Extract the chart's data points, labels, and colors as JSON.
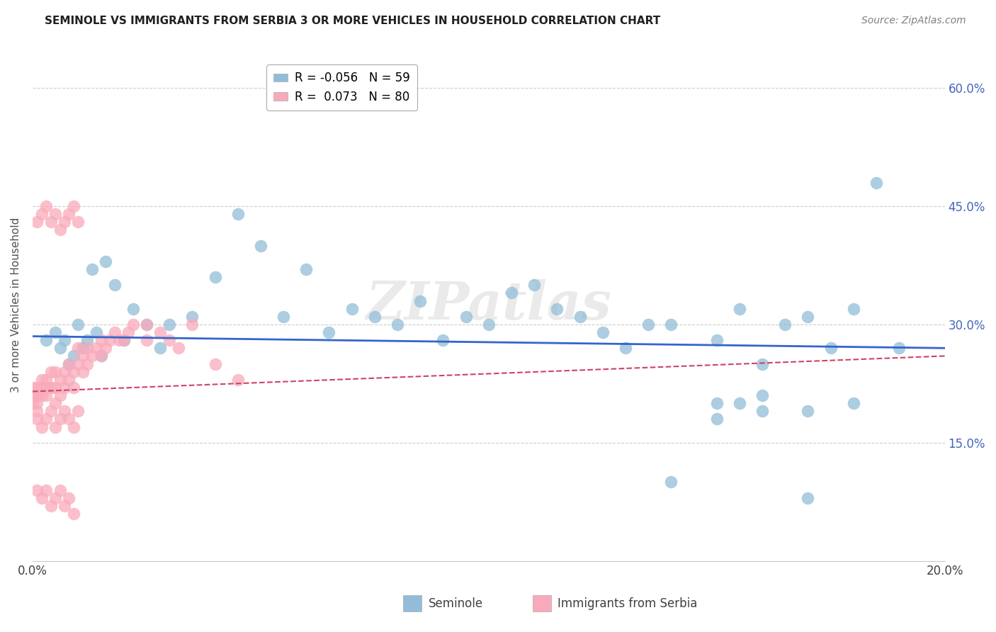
{
  "title": "SEMINOLE VS IMMIGRANTS FROM SERBIA 3 OR MORE VEHICLES IN HOUSEHOLD CORRELATION CHART",
  "source": "Source: ZipAtlas.com",
  "ylabel": "3 or more Vehicles in Household",
  "xlim": [
    0.0,
    0.2
  ],
  "ylim": [
    0.0,
    0.65
  ],
  "xticks": [
    0.0,
    0.05,
    0.1,
    0.15,
    0.2
  ],
  "yticks": [
    0.0,
    0.15,
    0.3,
    0.45,
    0.6
  ],
  "xticklabels": [
    "0.0%",
    "",
    "",
    "",
    "20.0%"
  ],
  "yticklabels_right": [
    "",
    "15.0%",
    "30.0%",
    "45.0%",
    "60.0%"
  ],
  "legend_blue_r": "-0.056",
  "legend_blue_n": "59",
  "legend_pink_r": "0.073",
  "legend_pink_n": "80",
  "seminole_color": "#92BDD8",
  "serbia_color": "#F9AABA",
  "line_blue": "#3366CC",
  "line_pink": "#CC4466",
  "grid_color": "#CCCCCC",
  "title_color": "#202020",
  "right_tick_color": "#4466BB",
  "watermark": "ZIPatlas",
  "seminole_x": [
    0.003,
    0.005,
    0.006,
    0.007,
    0.008,
    0.009,
    0.01,
    0.011,
    0.012,
    0.013,
    0.014,
    0.015,
    0.016,
    0.018,
    0.02,
    0.022,
    0.025,
    0.028,
    0.03,
    0.035,
    0.04,
    0.045,
    0.05,
    0.055,
    0.06,
    0.065,
    0.07,
    0.075,
    0.08,
    0.085,
    0.09,
    0.095,
    0.1,
    0.105,
    0.11,
    0.115,
    0.12,
    0.125,
    0.13,
    0.135,
    0.14,
    0.15,
    0.155,
    0.16,
    0.165,
    0.17,
    0.175,
    0.18,
    0.185,
    0.19,
    0.155,
    0.16,
    0.17,
    0.15,
    0.14,
    0.16,
    0.17,
    0.15,
    0.18
  ],
  "seminole_y": [
    0.28,
    0.29,
    0.27,
    0.28,
    0.25,
    0.26,
    0.3,
    0.27,
    0.28,
    0.37,
    0.29,
    0.26,
    0.38,
    0.35,
    0.28,
    0.32,
    0.3,
    0.27,
    0.3,
    0.31,
    0.36,
    0.44,
    0.4,
    0.31,
    0.37,
    0.29,
    0.32,
    0.31,
    0.3,
    0.33,
    0.28,
    0.31,
    0.3,
    0.34,
    0.35,
    0.32,
    0.31,
    0.29,
    0.27,
    0.3,
    0.3,
    0.28,
    0.32,
    0.25,
    0.3,
    0.31,
    0.27,
    0.32,
    0.48,
    0.27,
    0.2,
    0.19,
    0.19,
    0.2,
    0.1,
    0.21,
    0.08,
    0.18,
    0.2
  ],
  "serbia_x": [
    0.0,
    0.0,
    0.0,
    0.001,
    0.001,
    0.001,
    0.001,
    0.002,
    0.002,
    0.002,
    0.003,
    0.003,
    0.003,
    0.004,
    0.004,
    0.005,
    0.005,
    0.005,
    0.006,
    0.006,
    0.007,
    0.007,
    0.008,
    0.008,
    0.009,
    0.009,
    0.01,
    0.01,
    0.011,
    0.011,
    0.012,
    0.012,
    0.013,
    0.014,
    0.015,
    0.015,
    0.016,
    0.017,
    0.018,
    0.019,
    0.02,
    0.021,
    0.022,
    0.025,
    0.025,
    0.028,
    0.03,
    0.032,
    0.035,
    0.04,
    0.001,
    0.002,
    0.003,
    0.004,
    0.005,
    0.006,
    0.007,
    0.008,
    0.009,
    0.01,
    0.001,
    0.002,
    0.003,
    0.004,
    0.005,
    0.006,
    0.007,
    0.008,
    0.009,
    0.01,
    0.001,
    0.002,
    0.003,
    0.004,
    0.005,
    0.006,
    0.007,
    0.008,
    0.009,
    0.045
  ],
  "serbia_y": [
    0.2,
    0.21,
    0.22,
    0.19,
    0.2,
    0.21,
    0.22,
    0.21,
    0.22,
    0.23,
    0.21,
    0.22,
    0.23,
    0.22,
    0.24,
    0.2,
    0.22,
    0.24,
    0.21,
    0.23,
    0.22,
    0.24,
    0.23,
    0.25,
    0.22,
    0.24,
    0.25,
    0.27,
    0.24,
    0.26,
    0.25,
    0.27,
    0.26,
    0.27,
    0.26,
    0.28,
    0.27,
    0.28,
    0.29,
    0.28,
    0.28,
    0.29,
    0.3,
    0.28,
    0.3,
    0.29,
    0.28,
    0.27,
    0.3,
    0.25,
    0.18,
    0.17,
    0.18,
    0.19,
    0.17,
    0.18,
    0.19,
    0.18,
    0.17,
    0.19,
    0.43,
    0.44,
    0.45,
    0.43,
    0.44,
    0.42,
    0.43,
    0.44,
    0.45,
    0.43,
    0.09,
    0.08,
    0.09,
    0.07,
    0.08,
    0.09,
    0.07,
    0.08,
    0.06,
    0.23
  ]
}
